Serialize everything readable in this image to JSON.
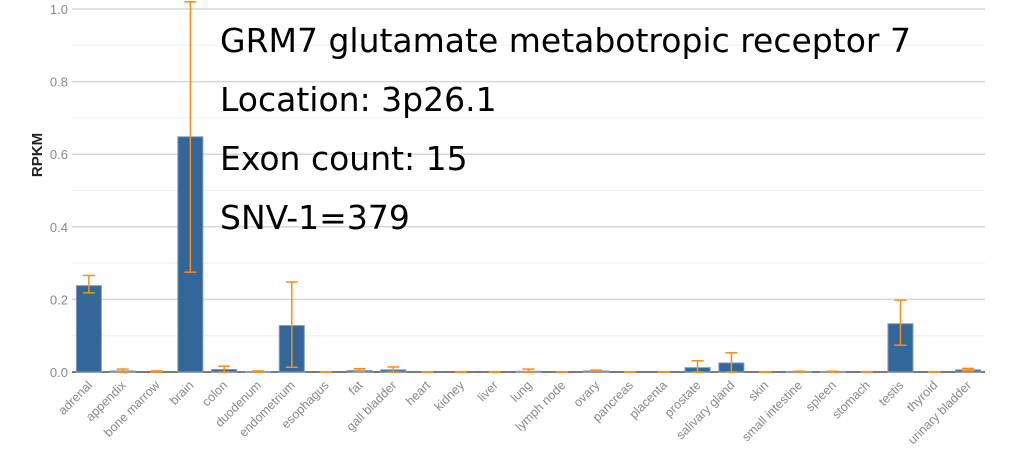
{
  "chart_data": {
    "type": "bar",
    "title": "",
    "ylabel": "RPKM",
    "xlabel": "",
    "ylim": [
      0,
      1.0
    ],
    "yticks": [
      "0.0",
      "0.2",
      "0.4",
      "0.6",
      "0.8",
      "1.0"
    ],
    "grid": true,
    "categories": [
      "adrenal",
      "appendix",
      "bone marrow",
      "brain",
      "colon",
      "duodenum",
      "endometrium",
      "esophagus",
      "fat",
      "gall bladder",
      "heart",
      "kidney",
      "liver",
      "lung",
      "lymph node",
      "ovary",
      "pancreas",
      "placenta",
      "prostate",
      "salivary gland",
      "skin",
      "small intestine",
      "spleen",
      "stomach",
      "testis",
      "thyroid",
      "urinary bladder"
    ],
    "values": [
      0.238,
      0.003,
      0,
      0.648,
      0.007,
      0.001,
      0.128,
      0,
      0.004,
      0.006,
      0,
      0,
      0,
      0.002,
      0,
      0.003,
      0,
      0,
      0.012,
      0.025,
      0,
      0.001,
      0.001,
      0,
      0.133,
      0,
      0.006
    ],
    "err_low": [
      0.218,
      0,
      0,
      0.275,
      0,
      0,
      0.013,
      0,
      0.002,
      0,
      0,
      0,
      0,
      0,
      0,
      0.003,
      0,
      0,
      0,
      0,
      0,
      0,
      0,
      0,
      0.074,
      0,
      0.004
    ],
    "err_high": [
      0.266,
      0.008,
      0.003,
      1.02,
      0.016,
      0.003,
      0.248,
      0,
      0.009,
      0.014,
      0,
      0.001,
      0.001,
      0.008,
      0,
      0.005,
      0,
      0,
      0.031,
      0.053,
      0,
      0.002,
      0.002,
      0.001,
      0.198,
      0,
      0.01
    ],
    "bar_color": "#336699",
    "error_color": "#ff8c1a",
    "annotations": [
      "GRM7 glutamate metabotropic receptor 7",
      "Location: 3p26.1",
      "Exon count: 15",
      "SNV-1=379"
    ]
  }
}
